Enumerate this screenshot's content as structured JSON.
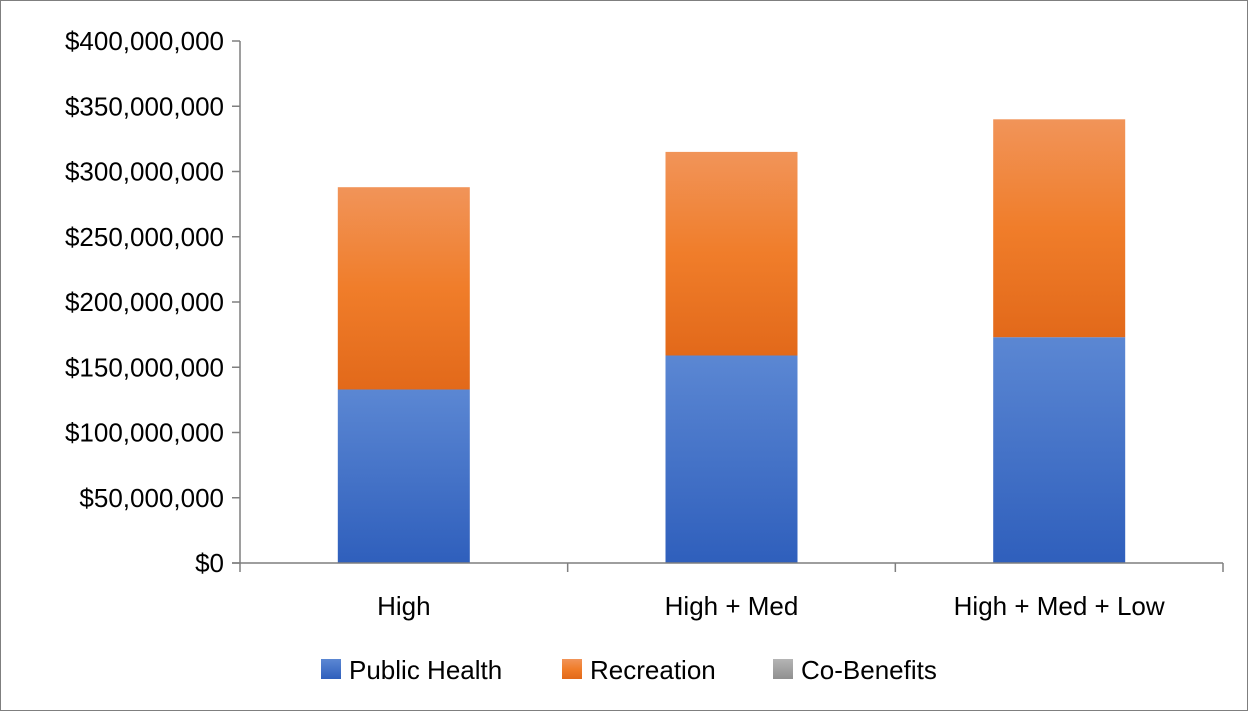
{
  "chart_data": {
    "type": "bar",
    "stacked": true,
    "categories": [
      "High",
      "High + Med",
      "High + Med + Low"
    ],
    "series": [
      {
        "name": "Public Health",
        "values": [
          133000000,
          159000000,
          173000000
        ]
      },
      {
        "name": "Recreation",
        "values": [
          155000000,
          156000000,
          167000000
        ]
      },
      {
        "name": "Co-Benefits",
        "values": [
          0,
          0,
          0
        ]
      }
    ],
    "ylim": [
      0,
      400000000
    ],
    "yticks": [
      0,
      50000000,
      100000000,
      150000000,
      200000000,
      250000000,
      300000000,
      350000000,
      400000000
    ],
    "ytick_labels": [
      "$0",
      "$50,000,000",
      "$100,000,000",
      "$150,000,000",
      "$200,000,000",
      "$250,000,000",
      "$300,000,000",
      "$350,000,000",
      "$400,000,000"
    ],
    "title": "",
    "xlabel": "",
    "ylabel": "",
    "grid": false,
    "legend_position": "bottom",
    "colors": {
      "Public Health": "#4472c4",
      "Recreation": "#ed7d31",
      "Co-Benefits": "#a5a5a5"
    }
  }
}
